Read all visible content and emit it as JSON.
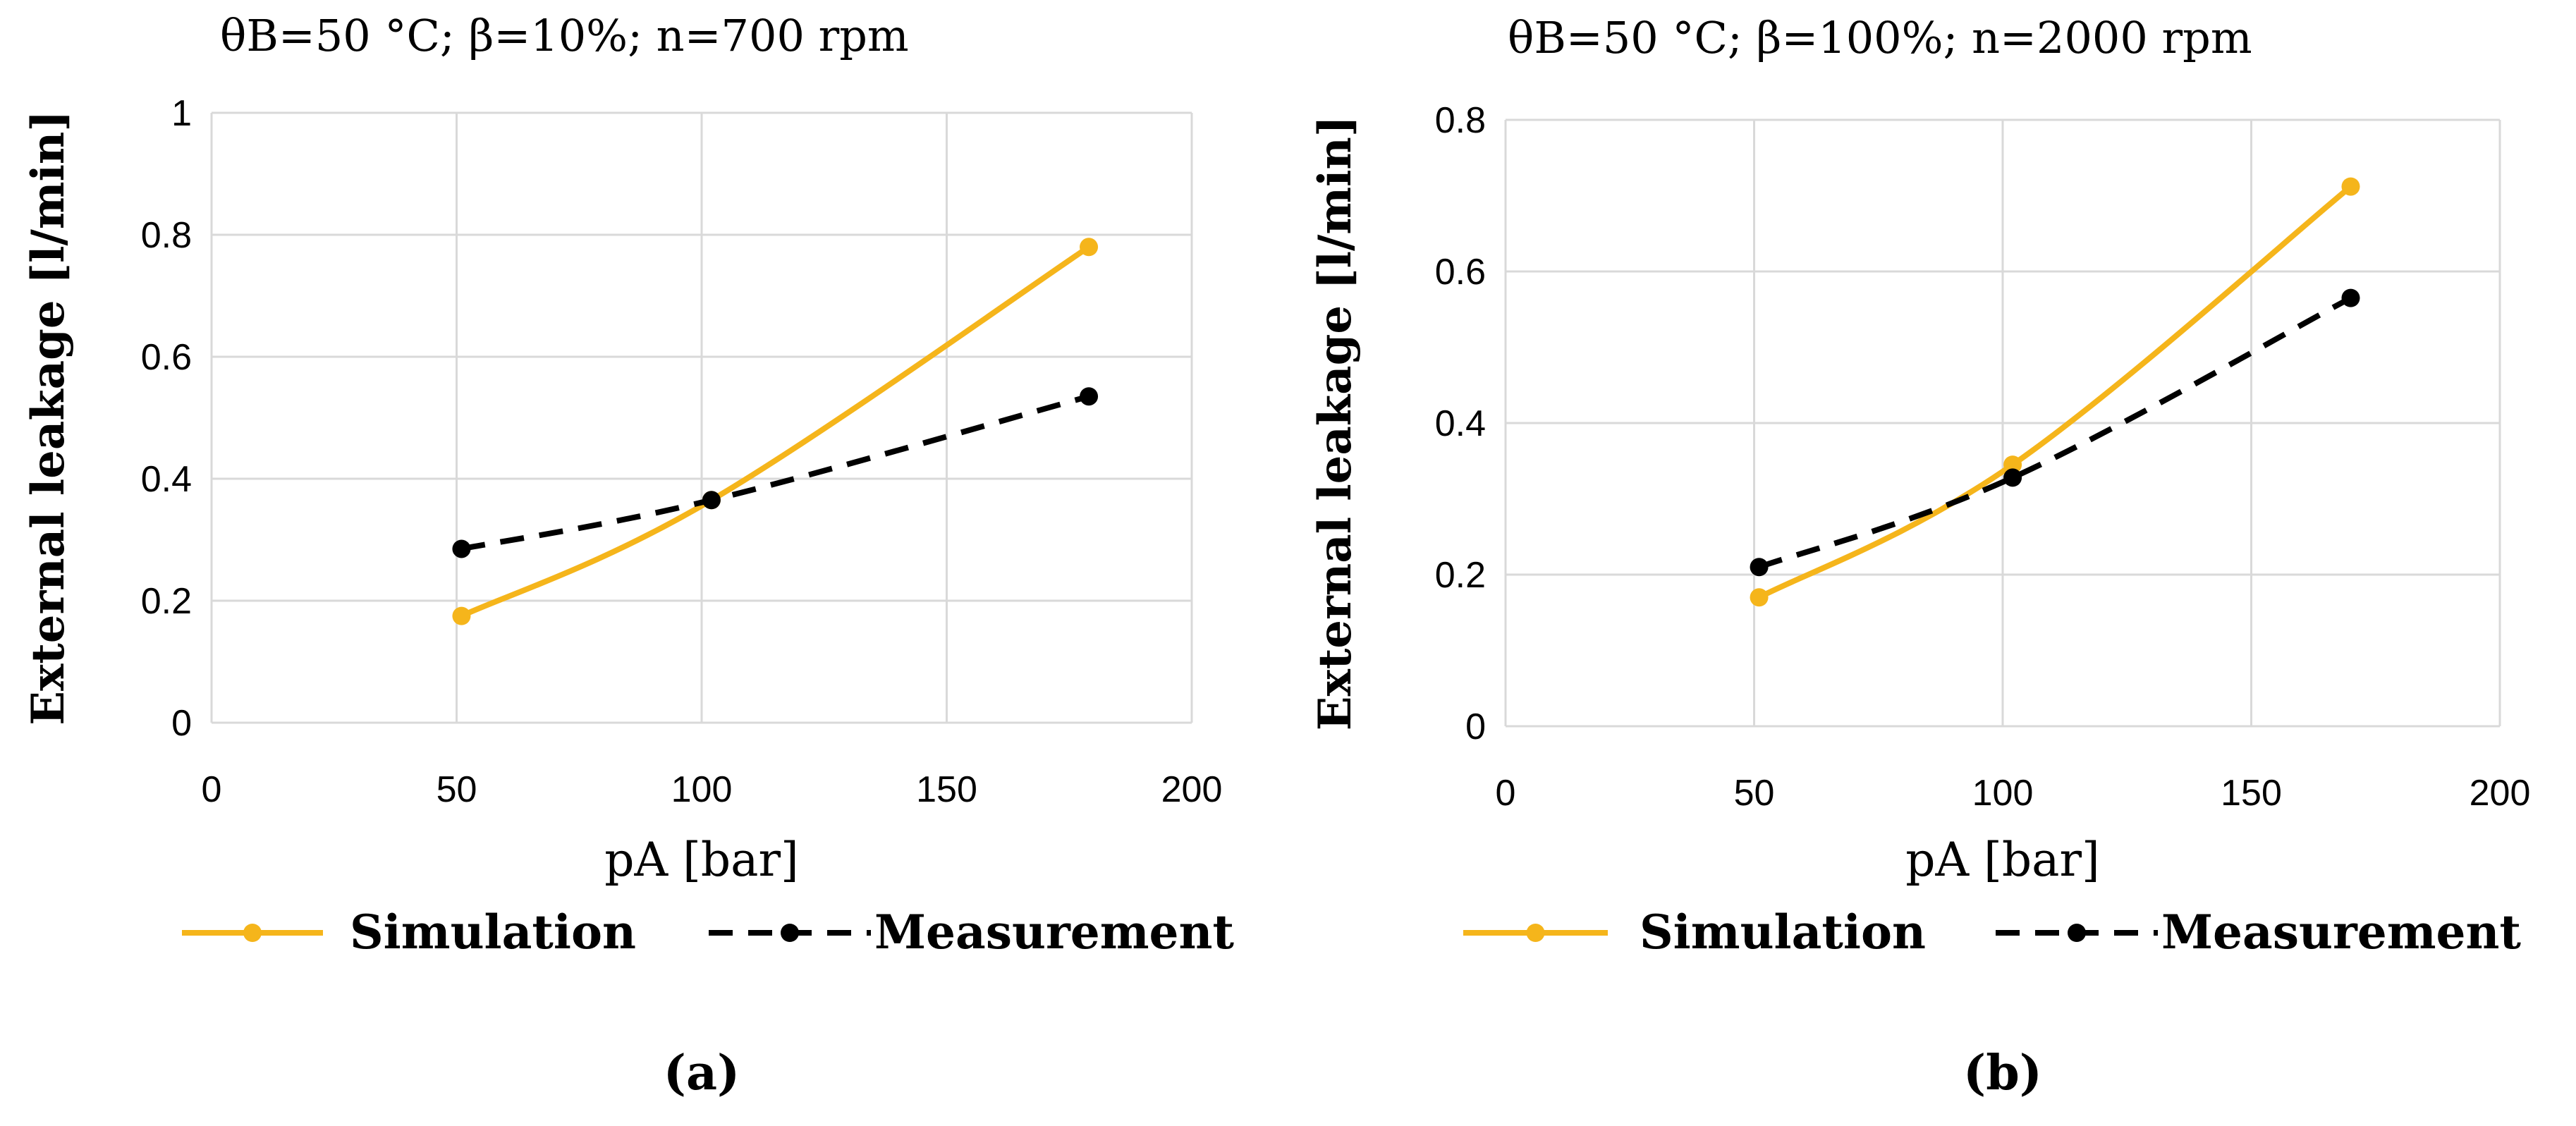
{
  "chart_data": [
    {
      "id": "a",
      "type": "line",
      "title": "θB=50 °C; β=10%; n=700 rpm",
      "xlabel": "pA [bar]",
      "ylabel": "External leakage [l/min]",
      "xlim": [
        0,
        200
      ],
      "ylim": [
        0,
        1
      ],
      "x_ticks": [
        0,
        50,
        100,
        150,
        200
      ],
      "x_tick_labels": [
        "0",
        "50",
        "100",
        "150",
        "200"
      ],
      "y_ticks": [
        0,
        0.2,
        0.4,
        0.6,
        0.8,
        1
      ],
      "y_tick_labels": [
        "0",
        "0.2",
        "0.4",
        "0.6",
        "0.8",
        "1"
      ],
      "grid": true,
      "legend_position": "bottom",
      "series": [
        {
          "name": "Simulation",
          "color": "#F5B51B",
          "dash": "solid",
          "x": [
            51,
            102,
            179
          ],
          "y": [
            0.175,
            0.365,
            0.78
          ]
        },
        {
          "name": "Measurement",
          "color": "#000000",
          "dash": "dashed",
          "x": [
            51,
            102,
            179
          ],
          "y": [
            0.285,
            0.365,
            0.535
          ]
        }
      ],
      "caption": "(a)"
    },
    {
      "id": "b",
      "type": "line",
      "title": "θB=50 °C; β=100%; n=2000 rpm",
      "xlabel": "pA [bar]",
      "ylabel": "External leakage [l/min]",
      "xlim": [
        0,
        200
      ],
      "ylim": [
        0,
        0.8
      ],
      "x_ticks": [
        0,
        50,
        100,
        150,
        200
      ],
      "x_tick_labels": [
        "0",
        "50",
        "100",
        "150",
        "200"
      ],
      "y_ticks": [
        0,
        0.2,
        0.4,
        0.6,
        0.8
      ],
      "y_tick_labels": [
        "0",
        "0.2",
        "0.4",
        "0.6",
        "0.8"
      ],
      "grid": true,
      "legend_position": "bottom",
      "series": [
        {
          "name": "Simulation",
          "color": "#F5B51B",
          "dash": "solid",
          "x": [
            51,
            102,
            170
          ],
          "y": [
            0.17,
            0.345,
            0.712
          ]
        },
        {
          "name": "Measurement",
          "color": "#000000",
          "dash": "dashed",
          "x": [
            51,
            102,
            170
          ],
          "y": [
            0.21,
            0.328,
            0.565
          ]
        }
      ],
      "caption": "(b)"
    }
  ]
}
